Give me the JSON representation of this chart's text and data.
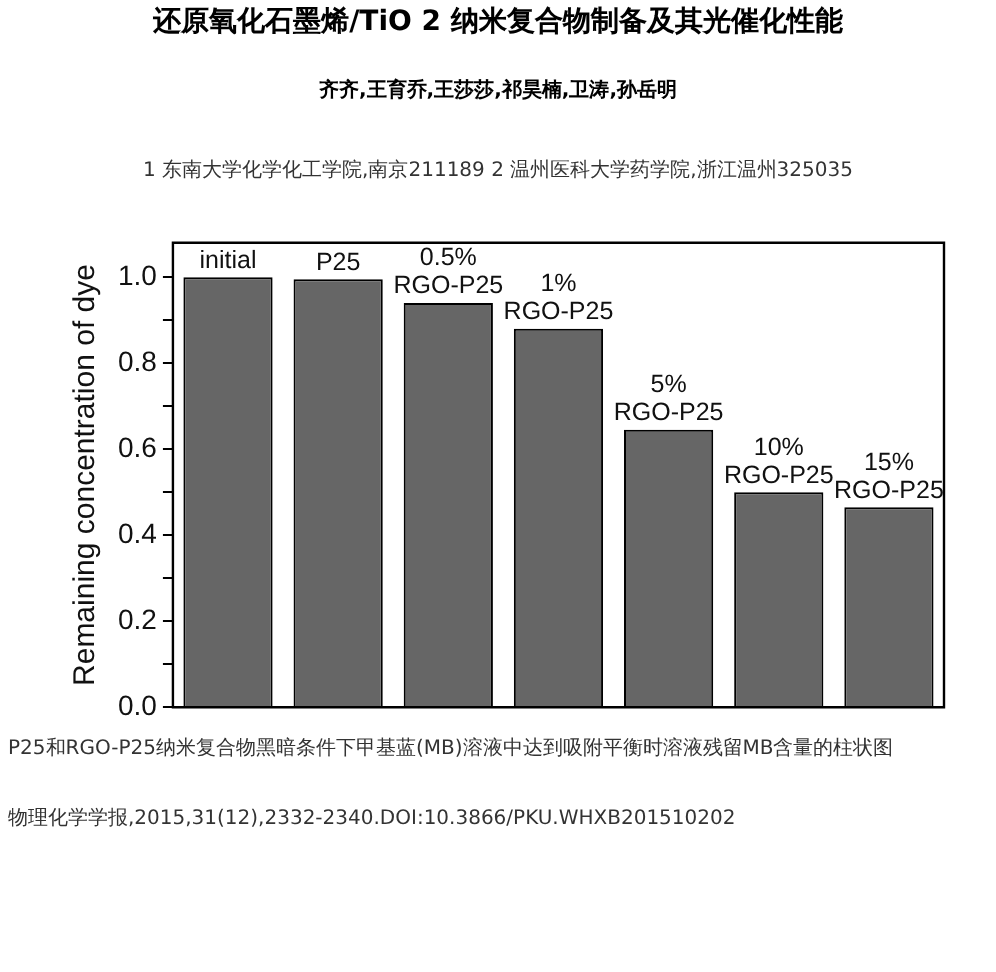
{
  "chart_data": {
    "type": "bar",
    "title": "还原氧化石墨烯/TiO 2 纳米复合物制备及其光催化性能",
    "subtitle": "齐齐,王育乔,王莎莎,祁昊楠,卫涛,孙岳明",
    "ylabel": "Remaining concentration of dye",
    "categories": [
      "initial",
      "P25",
      "0.5% RGO-P25",
      "1% RGO-P25",
      "5% RGO-P25",
      "10% RGO-P25",
      "15% RGO-P25"
    ],
    "values": [
      1.0,
      0.995,
      0.94,
      0.88,
      0.645,
      0.5,
      0.465
    ],
    "color": "#666666",
    "ylim": [
      0,
      1.08
    ],
    "yticks": [
      {
        "value": 0,
        "label": "0.0"
      },
      {
        "value": 0.1,
        "label": null
      },
      0.2,
      {
        "value": 0.3,
        "label": null
      },
      0.4,
      {
        "value": 0.5,
        "label": null
      },
      0.6,
      {
        "value": 0.7,
        "label": null
      },
      0.8,
      {
        "value": 0.9,
        "label": null
      },
      {
        "value": 1,
        "label": "1.0"
      }
    ],
    "grid": false,
    "legend": false,
    "annotations": [
      "1 东南大学化学化工学院,南京211189 2 温州医科大学药学院,浙江温州325035",
      "P25和RGO-P25纳米复合物黑暗条件下甲基蓝(MB)溶液中达到吸附平衡时溶液残留MB含量的柱状图",
      "物理化学学报,2015,31(12),2332-2340.DOI:10.3866/PKU.WHXB201510202"
    ]
  }
}
